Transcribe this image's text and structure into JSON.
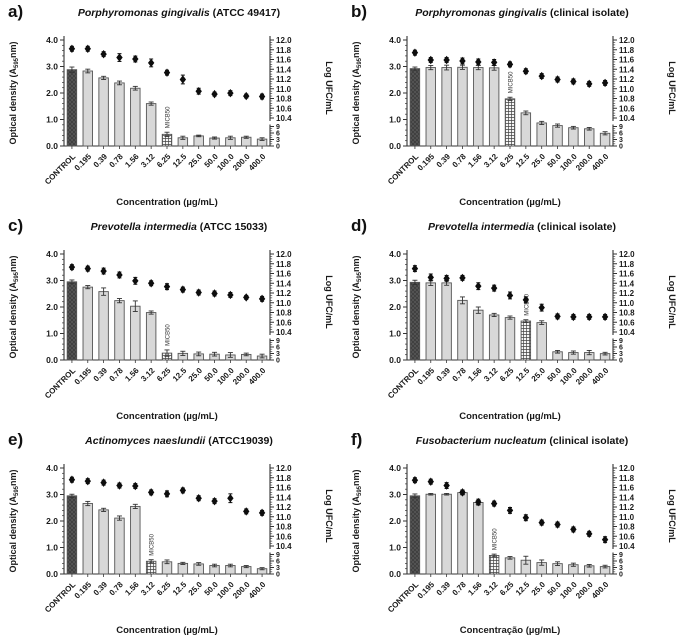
{
  "figure": {
    "background": "#ffffff",
    "left_axis_label_parts": [
      "Optical density (A",
      "595",
      "nm)"
    ],
    "right_axis_label": "Log UFC/mL",
    "left_ticks": [
      "0.0",
      "1.0",
      "2.0",
      "3.0",
      "4.0"
    ],
    "right_upper_ticks": [
      "12.0",
      "11.8",
      "11.6",
      "11.4",
      "11.2",
      "11.0",
      "10.8",
      "10.6",
      "10.4"
    ],
    "right_lower_ticks": [
      "9",
      "6",
      "3",
      "0"
    ],
    "mic_label": "MICB50",
    "colors": {
      "bar_fill": "#d8d8d8",
      "bar_stroke": "#555555",
      "control_fill": "#3d3d3d",
      "control_hatch": "#5a5a5a",
      "mic_fill": "#f5f5f5",
      "mic_hatch": "#444444",
      "marker": "#0d0d0d",
      "axis": "#333333",
      "text": "#1a1a1a"
    }
  },
  "chart_data": [
    {
      "type": "bar",
      "letter": "a)",
      "title_italic": "Porphyromonas gingivalis",
      "title_rest": " (ATCC 49417)",
      "xlabel": "Concentration (µg/mL)",
      "ylabel_left": "Optical density (A595nm)",
      "ylabel_right": "Log UFC/mL",
      "ylim_left": [
        0.0,
        4.0
      ],
      "ylim_right_upper": [
        10.4,
        12.0
      ],
      "ylim_right_lower": [
        0,
        9
      ],
      "categories": [
        "CONTROL",
        "0.195",
        "0.39",
        "0.78",
        "1.56",
        "3.12",
        "6.25",
        "12.5",
        "25.0",
        "50.0",
        "100.0",
        "200.0",
        "400.0"
      ],
      "series": [
        {
          "name": "Optical density",
          "values": [
            2.88,
            2.83,
            2.57,
            2.38,
            2.18,
            1.6,
            0.44,
            0.31,
            0.38,
            0.3,
            0.31,
            0.33,
            0.26
          ],
          "errors": [
            0.1,
            0.07,
            0.06,
            0.07,
            0.07,
            0.06,
            0.08,
            0.06,
            0.03,
            0.04,
            0.06,
            0.04,
            0.05
          ]
        },
        {
          "name": "Log UFC/mL",
          "values": [
            11.82,
            11.82,
            11.71,
            11.64,
            11.61,
            11.53,
            11.33,
            11.19,
            10.95,
            10.89,
            10.91,
            10.85,
            10.84
          ],
          "errors": [
            0.05,
            0.05,
            0.05,
            0.08,
            0.06,
            0.08,
            0.05,
            0.09,
            0.06,
            0.04,
            0.05,
            0.04,
            0.05
          ]
        }
      ],
      "mic_index": 6
    },
    {
      "type": "bar",
      "letter": "b)",
      "title_italic": "Porphyromonas gingivalis",
      "title_rest": " (clinical isolate)",
      "xlabel": "Concentration (µg/mL)",
      "ylabel_left": "Optical density (A595nm)",
      "ylabel_right": "Log UFC/mL",
      "ylim_left": [
        0.0,
        4.0
      ],
      "ylim_right_upper": [
        10.4,
        12.0
      ],
      "ylim_right_lower": [
        0,
        9
      ],
      "categories": [
        "CONTROL",
        "0.195",
        "0.39",
        "0.78",
        "1.56",
        "3.12",
        "6.25",
        "12.5",
        "25.0",
        "50.0",
        "100.0",
        "200.0",
        "400.0"
      ],
      "series": [
        {
          "name": "Optical density",
          "values": [
            2.92,
            2.96,
            2.96,
            2.97,
            2.96,
            2.95,
            1.78,
            1.25,
            0.87,
            0.77,
            0.69,
            0.65,
            0.48
          ],
          "errors": [
            0.06,
            0.08,
            0.09,
            0.08,
            0.08,
            0.09,
            0.06,
            0.07,
            0.06,
            0.06,
            0.05,
            0.05,
            0.06
          ]
        },
        {
          "name": "Log UFC/mL",
          "values": [
            11.74,
            11.59,
            11.59,
            11.57,
            11.55,
            11.54,
            11.5,
            11.36,
            11.26,
            11.19,
            11.15,
            11.1,
            11.12
          ],
          "errors": [
            0.05,
            0.05,
            0.05,
            0.06,
            0.06,
            0.06,
            0.05,
            0.05,
            0.05,
            0.05,
            0.05,
            0.05,
            0.05
          ]
        }
      ],
      "mic_index": 6
    },
    {
      "type": "bar",
      "letter": "c)",
      "title_italic": "Prevotella intermedia",
      "title_rest": " (ATCC 15033)",
      "xlabel": "Concentration (µg/mL)",
      "ylabel_left": "Optical density (A595nm)",
      "ylabel_right": "Log UFC/mL",
      "ylim_left": [
        0.0,
        4.0
      ],
      "ylim_right_upper": [
        10.4,
        12.0
      ],
      "ylim_right_lower": [
        0,
        9
      ],
      "categories": [
        "CONTROL",
        "0.195",
        "0.39",
        "0.78",
        "1.56",
        "3.12",
        "6.25",
        "12.5",
        "25.0",
        "50.0",
        "100.0",
        "200.0",
        "400.0"
      ],
      "series": [
        {
          "name": "Optical density",
          "values": [
            2.95,
            2.75,
            2.58,
            2.24,
            2.03,
            1.79,
            0.26,
            0.25,
            0.23,
            0.22,
            0.19,
            0.21,
            0.15
          ],
          "errors": [
            0.07,
            0.06,
            0.14,
            0.08,
            0.2,
            0.06,
            0.12,
            0.08,
            0.07,
            0.07,
            0.09,
            0.05,
            0.07
          ]
        },
        {
          "name": "Log UFC/mL",
          "values": [
            11.73,
            11.7,
            11.65,
            11.57,
            11.45,
            11.4,
            11.33,
            11.27,
            11.21,
            11.19,
            11.16,
            11.11,
            11.08
          ],
          "errors": [
            0.05,
            0.05,
            0.06,
            0.06,
            0.07,
            0.05,
            0.06,
            0.05,
            0.05,
            0.05,
            0.05,
            0.04,
            0.05
          ]
        }
      ],
      "mic_index": 6
    },
    {
      "type": "bar",
      "letter": "d)",
      "title_italic": "Prevotella intermedia",
      "title_rest": " (clinical isolate)",
      "xlabel": "Concentration (µg/mL)",
      "ylabel_left": "Optical density (A595nm)",
      "ylabel_right": "Log UFC/mL",
      "ylim_left": [
        0.0,
        4.0
      ],
      "ylim_right_upper": [
        10.4,
        12.0
      ],
      "ylim_right_lower": [
        0,
        9
      ],
      "categories": [
        "CONTROL",
        "0.195",
        "0.39",
        "0.78",
        "1.56",
        "3.12",
        "6.25",
        "12.5",
        "25.0",
        "50.0",
        "100.0",
        "200.0",
        "400.0"
      ],
      "series": [
        {
          "name": "Optical density",
          "values": [
            2.93,
            2.91,
            2.91,
            2.25,
            1.88,
            1.7,
            1.6,
            1.47,
            1.41,
            0.31,
            0.28,
            0.28,
            0.24
          ],
          "errors": [
            0.08,
            0.1,
            0.09,
            0.13,
            0.12,
            0.06,
            0.06,
            0.05,
            0.07,
            0.05,
            0.06,
            0.08,
            0.05
          ]
        },
        {
          "name": "Log UFC/mL",
          "values": [
            11.7,
            11.52,
            11.5,
            11.51,
            11.34,
            11.3,
            11.15,
            11.06,
            10.9,
            10.72,
            10.71,
            10.71,
            10.71
          ],
          "errors": [
            0.06,
            0.07,
            0.06,
            0.05,
            0.07,
            0.06,
            0.07,
            0.06,
            0.07,
            0.05,
            0.05,
            0.05,
            0.05
          ]
        }
      ],
      "mic_index": 7
    },
    {
      "type": "bar",
      "letter": "e)",
      "title_italic": "Actinomyces naeslundii",
      "title_rest": " (ATCC19039)",
      "xlabel": "Concentration (µg/mL)",
      "ylabel_left": "Optical density (A595nm)",
      "ylabel_right": "Log UFC/mL",
      "ylim_left": [
        0.0,
        4.0
      ],
      "ylim_right_upper": [
        10.4,
        12.0
      ],
      "ylim_right_lower": [
        0,
        9
      ],
      "categories": [
        "CONTROL",
        "0.195",
        "0.39",
        "0.78",
        "1.56",
        "3.12",
        "6.25",
        "12.5",
        "25.0",
        "50.0",
        "100.0",
        "200.0",
        "400.0"
      ],
      "series": [
        {
          "name": "Optical density",
          "values": [
            2.95,
            2.66,
            2.42,
            2.11,
            2.55,
            0.48,
            0.46,
            0.4,
            0.38,
            0.32,
            0.32,
            0.28,
            0.2
          ],
          "errors": [
            0.06,
            0.08,
            0.06,
            0.08,
            0.08,
            0.06,
            0.07,
            0.04,
            0.05,
            0.05,
            0.05,
            0.04,
            0.04
          ]
        },
        {
          "name": "Log UFC/mL",
          "values": [
            11.76,
            11.73,
            11.7,
            11.64,
            11.63,
            11.5,
            11.47,
            11.54,
            11.38,
            11.32,
            11.38,
            11.11,
            11.08
          ],
          "errors": [
            0.05,
            0.05,
            0.05,
            0.05,
            0.05,
            0.05,
            0.06,
            0.05,
            0.05,
            0.05,
            0.09,
            0.05,
            0.05
          ]
        }
      ],
      "mic_index": 5
    },
    {
      "type": "bar",
      "letter": "f)",
      "title_italic": "Fusobacterium nucleatum",
      "title_rest": " (clinical isolate)",
      "xlabel": "Concentração (µg/mL)",
      "ylabel_left": "Optical density (A595nm)",
      "ylabel_right": "Log UFC/mL",
      "ylim_left": [
        0.0,
        4.0
      ],
      "ylim_right_upper": [
        10.4,
        12.0
      ],
      "ylim_right_lower": [
        0,
        9
      ],
      "categories": [
        "CONTROL",
        "0.195",
        "0.39",
        "0.78",
        "1.56",
        "3.12",
        "6.25",
        "12.5",
        "25.0",
        "50.0",
        "100.0",
        "200.0",
        "400.0"
      ],
      "series": [
        {
          "name": "Optical density",
          "values": [
            2.95,
            3.01,
            3.01,
            3.07,
            2.7,
            0.7,
            0.61,
            0.52,
            0.43,
            0.39,
            0.35,
            0.31,
            0.28
          ],
          "errors": [
            0.07,
            0.03,
            0.03,
            0.06,
            0.07,
            0.05,
            0.05,
            0.15,
            0.1,
            0.07,
            0.06,
            0.05,
            0.05
          ]
        },
        {
          "name": "Log UFC/mL",
          "values": [
            11.75,
            11.72,
            11.64,
            11.5,
            11.3,
            11.27,
            11.13,
            10.98,
            10.88,
            10.84,
            10.74,
            10.65,
            10.53
          ],
          "errors": [
            0.05,
            0.05,
            0.06,
            0.05,
            0.06,
            0.05,
            0.06,
            0.06,
            0.05,
            0.05,
            0.05,
            0.05,
            0.06
          ]
        }
      ],
      "mic_index": 5
    }
  ]
}
